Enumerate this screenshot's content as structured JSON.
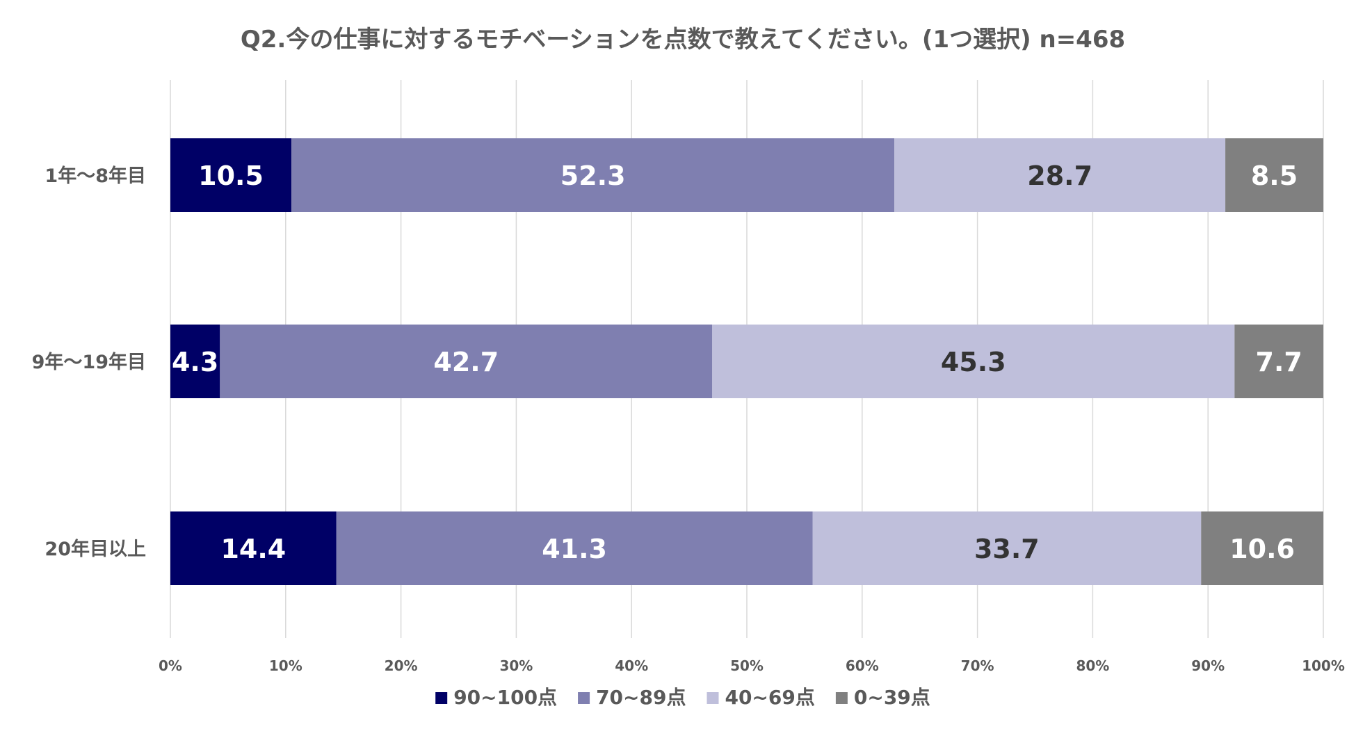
{
  "chart_data": {
    "type": "stacked-bar-horizontal-100",
    "title": "Q2.今の仕事に対するモチベーションを点数で教えてください。(1つ選択) n=468",
    "categories": [
      "1年～8年目",
      "9年～19年目",
      "20年目以上"
    ],
    "series": [
      {
        "name": "90~100点",
        "color": "#000066",
        "label_color": "#ffffff",
        "values": [
          10.5,
          4.3,
          14.4
        ]
      },
      {
        "name": "70~89点",
        "color": "#7f7fb0",
        "label_color": "#ffffff",
        "values": [
          52.3,
          42.7,
          41.3
        ]
      },
      {
        "name": "40~69点",
        "color": "#bfbfdb",
        "label_color": "#333333",
        "values": [
          28.7,
          45.3,
          33.7
        ]
      },
      {
        "name": "0~39点",
        "color": "#808080",
        "label_color": "#ffffff",
        "values": [
          8.5,
          7.7,
          10.6
        ]
      }
    ],
    "x_ticks": [
      "0%",
      "10%",
      "20%",
      "30%",
      "40%",
      "50%",
      "60%",
      "70%",
      "80%",
      "90%",
      "100%"
    ],
    "xlim": [
      0,
      100
    ],
    "grid": true,
    "legend": "bottom"
  }
}
